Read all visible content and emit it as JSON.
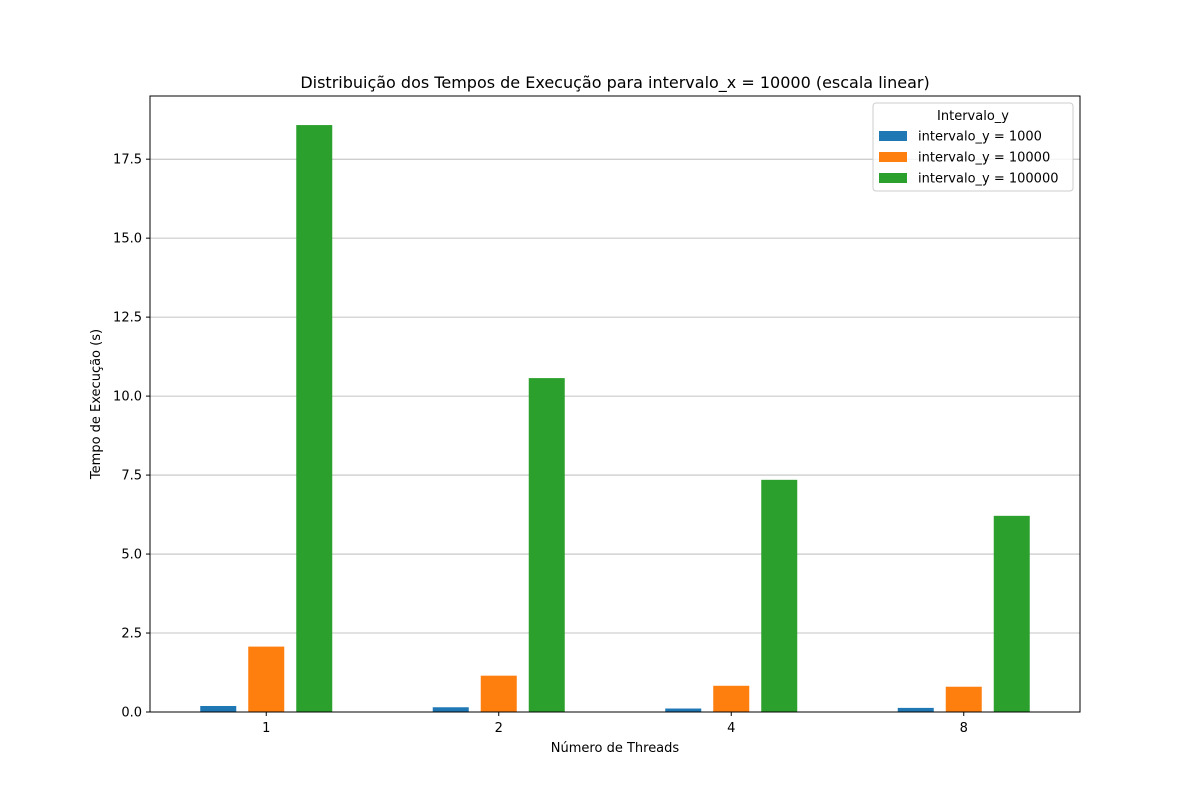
{
  "chart_data": {
    "type": "bar",
    "title": "Distribuição dos Tempos de Execução para intervalo_x = 10000 (escala linear)",
    "xlabel": "Número de Threads",
    "ylabel": "Tempo de Execução (s)",
    "categories": [
      "1",
      "2",
      "4",
      "8"
    ],
    "ylim": [
      0,
      19.5
    ],
    "yticks": [
      "0.0",
      "2.5",
      "5.0",
      "7.5",
      "10.0",
      "12.5",
      "15.0",
      "17.5"
    ],
    "grid": "y",
    "legend": {
      "title": "Intervalo_y",
      "placement": "top-right"
    },
    "series": [
      {
        "name": "intervalo_y = 1000",
        "color": "#1f77b4",
        "values": [
          0.19,
          0.15,
          0.11,
          0.13
        ]
      },
      {
        "name": "intervalo_y = 10000",
        "color": "#ff7f0e",
        "values": [
          2.07,
          1.15,
          0.83,
          0.8
        ]
      },
      {
        "name": "intervalo_y = 100000",
        "color": "#2ca02c",
        "values": [
          18.58,
          10.57,
          7.35,
          6.21
        ]
      }
    ]
  }
}
